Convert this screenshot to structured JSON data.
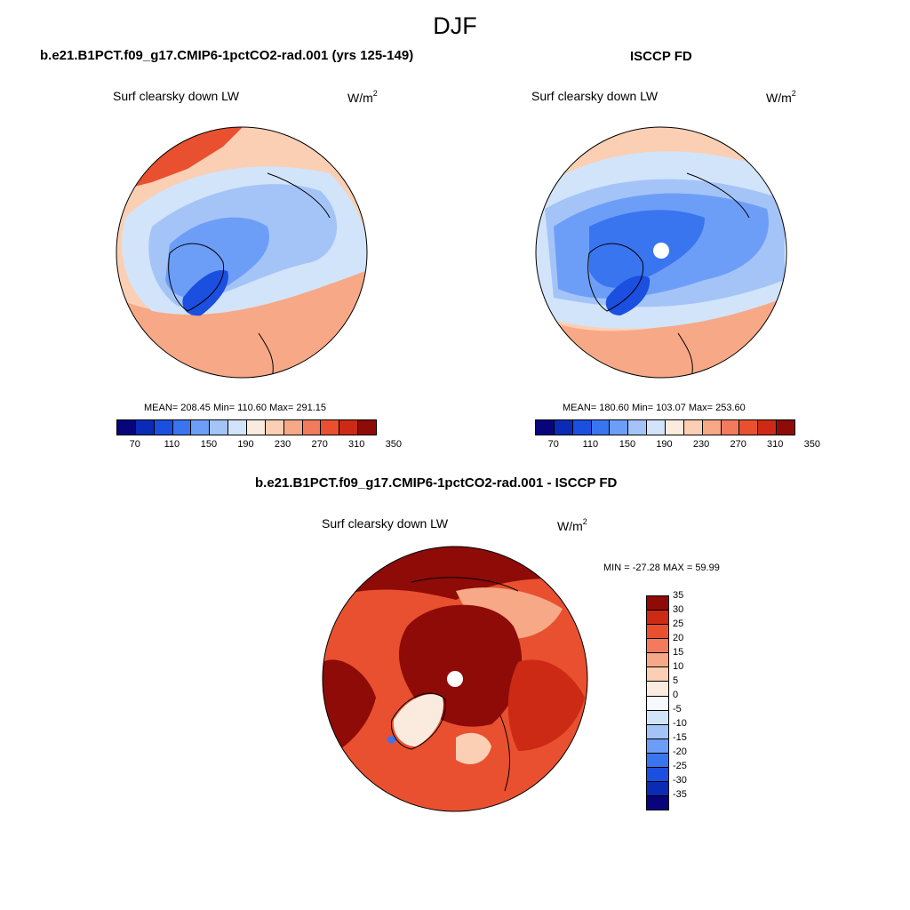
{
  "page_title": "DJF",
  "variable_label": "Surf clearsky down LW",
  "units": {
    "base": "W/m",
    "exponent": "2"
  },
  "panels": [
    {
      "id": "model",
      "title": "b.e21.B1PCT.f09_g17.CMIP6-1pctCO2-rad.001 (yrs 125-149)",
      "stats": {
        "mean": "MEAN= 208.45",
        "min": "Min= 110.60",
        "max": "Max= 291.15"
      }
    },
    {
      "id": "obs",
      "title": "ISCCP FD",
      "stats": {
        "mean": "MEAN= 180.60",
        "min": "Min= 103.07",
        "max": "Max= 253.60"
      }
    },
    {
      "id": "diff",
      "title": "b.e21.B1PCT.f09_g17.CMIP6-1pctCO2-rad.001 - ISCCP FD",
      "stats": {
        "minmax": "MIN = -27.28 MAX =  59.99"
      }
    }
  ],
  "colorbar_top": {
    "colors": [
      "#08057c",
      "#0a2bb5",
      "#1a4fe0",
      "#3a75f0",
      "#6d9ef7",
      "#a4c4f8",
      "#d2e4fa",
      "#fbebdf",
      "#fbcfb3",
      "#f7a886",
      "#f27b5e",
      "#e8502f",
      "#cc2a14",
      "#8e0b08"
    ],
    "ticks": [
      "70",
      "110",
      "150",
      "190",
      "230",
      "270",
      "310",
      "350"
    ]
  },
  "colorbar_diff": {
    "colors": [
      "#08057c",
      "#0a2bb5",
      "#1a4fe0",
      "#3a75f0",
      "#6d9ef7",
      "#a4c4f8",
      "#d2e4fa",
      "#f7f8fc",
      "#fbebdf",
      "#fbcfb3",
      "#f7a886",
      "#f27b5e",
      "#e8502f",
      "#cc2a14",
      "#8e0b08"
    ],
    "ticks": [
      "-35",
      "-30",
      "-25",
      "-20",
      "-15",
      "-10",
      "-5",
      "0",
      "5",
      "10",
      "15",
      "20",
      "25",
      "30",
      "35"
    ]
  },
  "map_colors": {
    "warm_dark": "#e8502f",
    "warm_mid": "#f7a886",
    "warm_light": "#fbcfb3",
    "neutral": "#fbebdf",
    "cool_light": "#d2e4fa",
    "cool_mid": "#a4c4f8",
    "cool": "#6d9ef7",
    "cool_dark": "#3a75f0",
    "cool_deep": "#1a4fe0",
    "diff_max": "#8e0b08",
    "diff_high": "#cc2a14",
    "diff_mid": "#e8502f"
  }
}
